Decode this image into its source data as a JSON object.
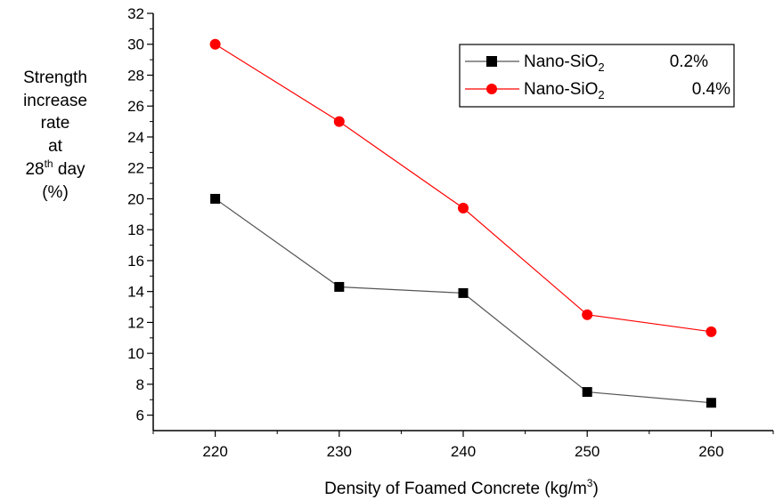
{
  "chart_data": {
    "type": "line",
    "title": "",
    "xlabel": {
      "main": "Density of Foamed Concrete (kg/m",
      "sup": "3",
      "tail": ")"
    },
    "ylabel": {
      "line1": "Strength",
      "line2": "increase",
      "line3": "rate",
      "line4": "at",
      "line5_pre": "28",
      "line5_sup": "th",
      "line5_post": " day",
      "line6": "(%)"
    },
    "x": [
      220,
      230,
      240,
      250,
      260
    ],
    "xlim": [
      215,
      265
    ],
    "ylim": [
      5,
      32
    ],
    "xticks": [
      220,
      230,
      240,
      250,
      260
    ],
    "yticks": [
      6,
      8,
      10,
      12,
      14,
      16,
      18,
      20,
      22,
      24,
      26,
      28,
      30,
      32
    ],
    "grid": false,
    "legend_position": "top-right",
    "series": [
      {
        "name": "Nano-SiO",
        "name_sub": "2",
        "pct": "0.2%",
        "color": "#000000",
        "line_color": "#555555",
        "marker": "square",
        "values": [
          20.0,
          14.3,
          13.9,
          7.5,
          6.8
        ]
      },
      {
        "name": "Nano-SiO",
        "name_sub": "2",
        "pct": "0.4%",
        "color": "#ff0000",
        "line_color": "#ff0000",
        "marker": "circle",
        "values": [
          30.0,
          25.0,
          19.4,
          12.5,
          11.4
        ]
      }
    ]
  }
}
